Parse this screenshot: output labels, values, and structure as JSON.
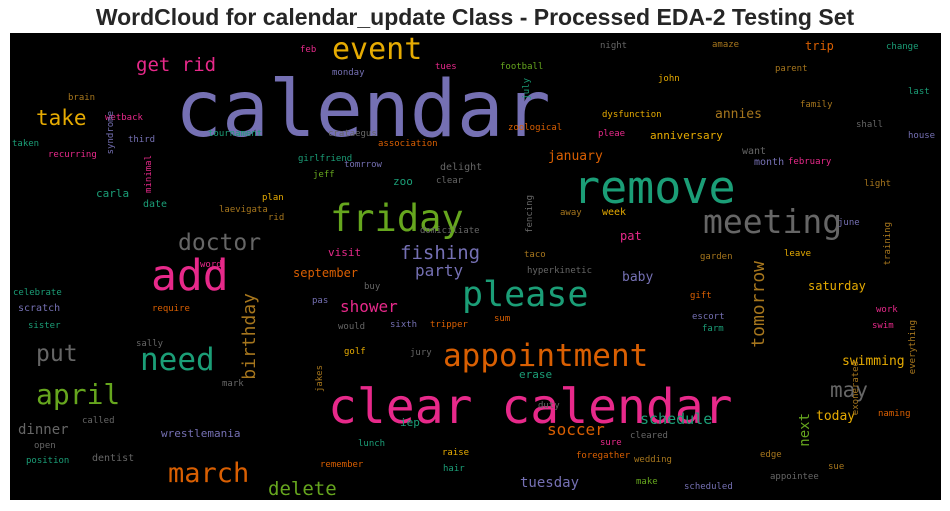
{
  "chart_data": {
    "type": "wordcloud",
    "title": "WordCloud for calendar_update Class - Processed EDA-2 Testing Set",
    "palette": [
      "#7570b3",
      "#1b9e77",
      "#d95f02",
      "#e7298a",
      "#66a61e",
      "#e6ab02",
      "#a6761d",
      "#666666"
    ],
    "words": [
      {
        "text": "calendar",
        "weight": 1.0,
        "color": "#7570b3",
        "orientation": "horizontal"
      },
      {
        "text": "clear calendar",
        "weight": 0.62,
        "color": "#e7298a",
        "orientation": "horizontal"
      },
      {
        "text": "remove",
        "weight": 0.58,
        "color": "#1b9e77",
        "orientation": "horizontal"
      },
      {
        "text": "add",
        "weight": 0.55,
        "color": "#e7298a",
        "orientation": "horizontal"
      },
      {
        "text": "friday",
        "weight": 0.48,
        "color": "#66a61e",
        "orientation": "horizontal"
      },
      {
        "text": "please",
        "weight": 0.45,
        "color": "#1b9e77",
        "orientation": "horizontal"
      },
      {
        "text": "meeting",
        "weight": 0.42,
        "color": "#666666",
        "orientation": "horizontal"
      },
      {
        "text": "appointment",
        "weight": 0.4,
        "color": "#d95f02",
        "orientation": "horizontal"
      },
      {
        "text": "need",
        "weight": 0.4,
        "color": "#1b9e77",
        "orientation": "horizontal"
      },
      {
        "text": "event",
        "weight": 0.38,
        "color": "#e6ab02",
        "orientation": "horizontal"
      },
      {
        "text": "april",
        "weight": 0.36,
        "color": "#66a61e",
        "orientation": "horizontal"
      },
      {
        "text": "march",
        "weight": 0.35,
        "color": "#d95f02",
        "orientation": "horizontal"
      },
      {
        "text": "doctor",
        "weight": 0.3,
        "color": "#666666",
        "orientation": "horizontal"
      },
      {
        "text": "put",
        "weight": 0.3,
        "color": "#666666",
        "orientation": "horizontal"
      },
      {
        "text": "may",
        "weight": 0.27,
        "color": "#666666",
        "orientation": "horizontal"
      },
      {
        "text": "take",
        "weight": 0.27,
        "color": "#e6ab02",
        "orientation": "horizontal"
      },
      {
        "text": "get rid",
        "weight": 0.24,
        "color": "#e7298a",
        "orientation": "horizontal"
      },
      {
        "text": "fishing",
        "weight": 0.24,
        "color": "#7570b3",
        "orientation": "horizontal"
      },
      {
        "text": "delete",
        "weight": 0.24,
        "color": "#66a61e",
        "orientation": "horizontal"
      },
      {
        "text": "birthday",
        "weight": 0.23,
        "color": "#a6761d",
        "orientation": "vertical"
      },
      {
        "text": "tomorrow",
        "weight": 0.23,
        "color": "#a6761d",
        "orientation": "vertical"
      },
      {
        "text": "party",
        "weight": 0.2,
        "color": "#7570b3",
        "orientation": "horizontal"
      },
      {
        "text": "shower",
        "weight": 0.2,
        "color": "#e7298a",
        "orientation": "horizontal"
      },
      {
        "text": "soccer",
        "weight": 0.2,
        "color": "#d95f02",
        "orientation": "horizontal"
      },
      {
        "text": "schedule",
        "weight": 0.19,
        "color": "#1b9e77",
        "orientation": "horizontal"
      },
      {
        "text": "tuesday",
        "weight": 0.18,
        "color": "#7570b3",
        "orientation": "horizontal"
      },
      {
        "text": "next",
        "weight": 0.18,
        "color": "#66a61e",
        "orientation": "vertical"
      },
      {
        "text": "dinner",
        "weight": 0.18,
        "color": "#666666",
        "orientation": "horizontal"
      },
      {
        "text": "swimming",
        "weight": 0.17,
        "color": "#e6ab02",
        "orientation": "horizontal"
      },
      {
        "text": "today",
        "weight": 0.17,
        "color": "#e6ab02",
        "orientation": "horizontal"
      },
      {
        "text": "annies",
        "weight": 0.17,
        "color": "#a6761d",
        "orientation": "horizontal"
      },
      {
        "text": "january",
        "weight": 0.17,
        "color": "#d95f02",
        "orientation": "horizontal"
      },
      {
        "text": "baby",
        "weight": 0.17,
        "color": "#7570b3",
        "orientation": "horizontal"
      },
      {
        "text": "september",
        "weight": 0.16,
        "color": "#d95f02",
        "orientation": "horizontal"
      },
      {
        "text": "pat",
        "weight": 0.16,
        "color": "#e7298a",
        "orientation": "horizontal"
      },
      {
        "text": "saturday",
        "weight": 0.15,
        "color": "#e6ab02",
        "orientation": "horizontal"
      },
      {
        "text": "trip",
        "weight": 0.15,
        "color": "#d95f02",
        "orientation": "horizontal"
      },
      {
        "text": "anniversary",
        "weight": 0.14,
        "color": "#e6ab02",
        "orientation": "horizontal"
      },
      {
        "text": "wrestlemania",
        "weight": 0.14,
        "color": "#7570b3",
        "orientation": "horizontal"
      },
      {
        "text": "carla",
        "weight": 0.14,
        "color": "#1b9e77",
        "orientation": "horizontal"
      },
      {
        "text": "visit",
        "weight": 0.14,
        "color": "#e7298a",
        "orientation": "horizontal"
      },
      {
        "text": "zoo",
        "weight": 0.14,
        "color": "#1b9e77",
        "orientation": "horizontal"
      },
      {
        "text": "iep",
        "weight": 0.14,
        "color": "#1b9e77",
        "orientation": "horizontal"
      },
      {
        "text": "erase",
        "weight": 0.14,
        "color": "#1b9e77",
        "orientation": "horizontal"
      },
      {
        "text": "dentist",
        "weight": 0.13,
        "color": "#666666",
        "orientation": "horizontal"
      },
      {
        "text": "delight",
        "weight": 0.13,
        "color": "#666666",
        "orientation": "horizontal"
      },
      {
        "text": "scratch",
        "weight": 0.13,
        "color": "#7570b3",
        "orientation": "horizontal"
      },
      {
        "text": "want",
        "weight": 0.13,
        "color": "#666666",
        "orientation": "horizontal"
      },
      {
        "text": "month",
        "weight": 0.13,
        "color": "#7570b3",
        "orientation": "horizontal"
      },
      {
        "text": "week",
        "weight": 0.13,
        "color": "#e6ab02",
        "orientation": "horizontal"
      },
      {
        "text": "date",
        "weight": 0.13,
        "color": "#1b9e77",
        "orientation": "horizontal"
      },
      {
        "text": "training",
        "weight": 0.12,
        "color": "#a6761d",
        "orientation": "vertical"
      },
      {
        "text": "everything",
        "weight": 0.12,
        "color": "#a6761d",
        "orientation": "vertical"
      },
      {
        "text": "july",
        "weight": 0.11,
        "color": "#1b9e77",
        "orientation": "vertical"
      },
      {
        "text": "feb",
        "weight": 0.11,
        "color": "#e7298a",
        "orientation": "horizontal"
      },
      {
        "text": "night",
        "weight": 0.11,
        "color": "#666666",
        "orientation": "horizontal"
      },
      {
        "text": "february",
        "weight": 0.11,
        "color": "#e7298a",
        "orientation": "horizontal"
      },
      {
        "text": "naming",
        "weight": 0.11,
        "color": "#d95f02",
        "orientation": "horizontal"
      },
      {
        "text": "sure",
        "weight": 0.11,
        "color": "#e7298a",
        "orientation": "horizontal"
      },
      {
        "text": "jeff",
        "weight": 0.11,
        "color": "#66a61e",
        "orientation": "horizontal"
      },
      {
        "text": "plan",
        "weight": 0.11,
        "color": "#e6ab02",
        "orientation": "horizontal"
      },
      {
        "text": "rid",
        "weight": 0.11,
        "color": "#a6761d",
        "orientation": "horizontal"
      },
      {
        "text": "recurring",
        "weight": 0.1,
        "color": "#e7298a",
        "orientation": "horizontal"
      },
      {
        "text": "third",
        "weight": 0.1,
        "color": "#7570b3",
        "orientation": "horizontal"
      },
      {
        "text": "change",
        "weight": 0.1,
        "color": "#1b9e77",
        "orientation": "horizontal"
      },
      {
        "text": "parent",
        "weight": 0.1,
        "color": "#a6761d",
        "orientation": "horizontal"
      },
      {
        "text": "family",
        "weight": 0.1,
        "color": "#a6761d",
        "orientation": "horizontal"
      },
      {
        "text": "last",
        "weight": 0.1,
        "color": "#1b9e77",
        "orientation": "horizontal"
      },
      {
        "text": "house",
        "weight": 0.1,
        "color": "#7570b3",
        "orientation": "horizontal"
      },
      {
        "text": "shall",
        "weight": 0.1,
        "color": "#666666",
        "orientation": "horizontal"
      },
      {
        "text": "light",
        "weight": 0.1,
        "color": "#a6761d",
        "orientation": "horizontal"
      },
      {
        "text": "june",
        "weight": 0.1,
        "color": "#7570b3",
        "orientation": "horizontal"
      },
      {
        "text": "leave",
        "weight": 0.1,
        "color": "#e6ab02",
        "orientation": "horizontal"
      },
      {
        "text": "garden",
        "weight": 0.1,
        "color": "#a6761d",
        "orientation": "horizontal"
      },
      {
        "text": "gift",
        "weight": 0.1,
        "color": "#d95f02",
        "orientation": "horizontal"
      },
      {
        "text": "escort",
        "weight": 0.1,
        "color": "#7570b3",
        "orientation": "horizontal"
      },
      {
        "text": "farm",
        "weight": 0.1,
        "color": "#1b9e77",
        "orientation": "horizontal"
      },
      {
        "text": "work",
        "weight": 0.1,
        "color": "#e7298a",
        "orientation": "horizontal"
      },
      {
        "text": "swim",
        "weight": 0.1,
        "color": "#e7298a",
        "orientation": "horizontal"
      },
      {
        "text": "exonerated",
        "weight": 0.09,
        "color": "#a6761d",
        "orientation": "vertical"
      },
      {
        "text": "sue",
        "weight": 0.1,
        "color": "#a6761d",
        "orientation": "horizontal"
      },
      {
        "text": "edge",
        "weight": 0.1,
        "color": "#a6761d",
        "orientation": "horizontal"
      },
      {
        "text": "appointee",
        "weight": 0.09,
        "color": "#666666",
        "orientation": "horizontal"
      },
      {
        "text": "scheduled",
        "weight": 0.09,
        "color": "#7570b3",
        "orientation": "horizontal"
      },
      {
        "text": "wedding",
        "weight": 0.1,
        "color": "#a6761d",
        "orientation": "horizontal"
      },
      {
        "text": "make",
        "weight": 0.09,
        "color": "#66a61e",
        "orientation": "horizontal"
      },
      {
        "text": "cleared",
        "weight": 0.09,
        "color": "#666666",
        "orientation": "horizontal"
      },
      {
        "text": "foregather",
        "weight": 0.1,
        "color": "#d95f02",
        "orientation": "horizontal"
      },
      {
        "text": "raise",
        "weight": 0.1,
        "color": "#e6ab02",
        "orientation": "horizontal"
      },
      {
        "text": "hair",
        "weight": 0.09,
        "color": "#1b9e77",
        "orientation": "horizontal"
      },
      {
        "text": "remember",
        "weight": 0.09,
        "color": "#d95f02",
        "orientation": "horizontal"
      },
      {
        "text": "lunch",
        "weight": 0.09,
        "color": "#1b9e77",
        "orientation": "horizontal"
      },
      {
        "text": "duty",
        "weight": 0.09,
        "color": "#666666",
        "orientation": "horizontal"
      },
      {
        "text": "jakes",
        "weight": 0.09,
        "color": "#a6761d",
        "orientation": "vertical"
      },
      {
        "text": "golf",
        "weight": 0.09,
        "color": "#e6ab02",
        "orientation": "horizontal"
      },
      {
        "text": "jury",
        "weight": 0.09,
        "color": "#666666",
        "orientation": "horizontal"
      },
      {
        "text": "sixth",
        "weight": 0.09,
        "color": "#7570b3",
        "orientation": "horizontal"
      },
      {
        "text": "tripper",
        "weight": 0.1,
        "color": "#d95f02",
        "orientation": "horizontal"
      },
      {
        "text": "sum",
        "weight": 0.09,
        "color": "#d95f02",
        "orientation": "horizontal"
      },
      {
        "text": "would",
        "weight": 0.09,
        "color": "#666666",
        "orientation": "horizontal"
      },
      {
        "text": "pas",
        "weight": 0.09,
        "color": "#7570b3",
        "orientation": "horizontal"
      },
      {
        "text": "buy",
        "weight": 0.09,
        "color": "#666666",
        "orientation": "horizontal"
      },
      {
        "text": "mark",
        "weight": 0.09,
        "color": "#666666",
        "orientation": "horizontal"
      },
      {
        "text": "sally",
        "weight": 0.09,
        "color": "#666666",
        "orientation": "horizontal"
      },
      {
        "text": "require",
        "weight": 0.09,
        "color": "#d95f02",
        "orientation": "horizontal"
      },
      {
        "text": "sister",
        "weight": 0.09,
        "color": "#1b9e77",
        "orientation": "horizontal"
      },
      {
        "text": "celebrate",
        "weight": 0.08,
        "color": "#1b9e77",
        "orientation": "horizontal"
      },
      {
        "text": "called",
        "weight": 0.09,
        "color": "#666666",
        "orientation": "horizontal"
      },
      {
        "text": "open",
        "weight": 0.08,
        "color": "#666666",
        "orientation": "horizontal"
      },
      {
        "text": "position",
        "weight": 0.09,
        "color": "#1b9e77",
        "orientation": "horizontal"
      },
      {
        "text": "word",
        "weight": 0.09,
        "color": "#e7298a",
        "orientation": "horizontal"
      },
      {
        "text": "laevigata",
        "weight": 0.09,
        "color": "#a6761d",
        "orientation": "horizontal"
      },
      {
        "text": "tomrrow",
        "weight": 0.09,
        "color": "#7570b3",
        "orientation": "horizontal"
      },
      {
        "text": "clear",
        "weight": 0.09,
        "color": "#666666",
        "orientation": "horizontal"
      },
      {
        "text": "girlfriend",
        "weight": 0.1,
        "color": "#1b9e77",
        "orientation": "horizontal"
      },
      {
        "text": "association",
        "weight": 0.09,
        "color": "#d95f02",
        "orientation": "horizontal"
      },
      {
        "text": "crataegus",
        "weight": 0.09,
        "color": "#666666",
        "orientation": "horizontal"
      },
      {
        "text": "tournament",
        "weight": 0.09,
        "color": "#1b9e77",
        "orientation": "horizontal"
      },
      {
        "text": "wetback",
        "weight": 0.09,
        "color": "#e7298a",
        "orientation": "horizontal"
      },
      {
        "text": "brain",
        "weight": 0.09,
        "color": "#a6761d",
        "orientation": "horizontal"
      },
      {
        "text": "syndrome",
        "weight": 0.08,
        "color": "#7570b3",
        "orientation": "vertical"
      },
      {
        "text": "taken",
        "weight": 0.09,
        "color": "#1b9e77",
        "orientation": "horizontal"
      },
      {
        "text": "minimal",
        "weight": 0.08,
        "color": "#e7298a",
        "orientation": "vertical"
      },
      {
        "text": "monday",
        "weight": 0.08,
        "color": "#7570b3",
        "orientation": "horizontal"
      },
      {
        "text": "tues",
        "weight": 0.09,
        "color": "#e7298a",
        "orientation": "horizontal"
      },
      {
        "text": "football",
        "weight": 0.09,
        "color": "#66a61e",
        "orientation": "horizontal"
      },
      {
        "text": "john",
        "weight": 0.09,
        "color": "#e6ab02",
        "orientation": "horizontal"
      },
      {
        "text": "amaze",
        "weight": 0.08,
        "color": "#a6761d",
        "orientation": "horizontal"
      },
      {
        "text": "dysfunction",
        "weight": 0.09,
        "color": "#e6ab02",
        "orientation": "horizontal"
      },
      {
        "text": "zoological",
        "weight": 0.09,
        "color": "#d95f02",
        "orientation": "horizontal"
      },
      {
        "text": "pleae",
        "weight": 0.09,
        "color": "#e7298a",
        "orientation": "horizontal"
      },
      {
        "text": "domiciliate",
        "weight": 0.09,
        "color": "#666666",
        "orientation": "horizontal"
      },
      {
        "text": "fencing",
        "weight": 0.08,
        "color": "#666666",
        "orientation": "vertical"
      },
      {
        "text": "away",
        "weight": 0.09,
        "color": "#a6761d",
        "orientation": "horizontal"
      },
      {
        "text": "taco",
        "weight": 0.09,
        "color": "#a6761d",
        "orientation": "horizontal"
      },
      {
        "text": "hyperkinetic",
        "weight": 0.09,
        "color": "#666666",
        "orientation": "horizontal"
      }
    ]
  }
}
